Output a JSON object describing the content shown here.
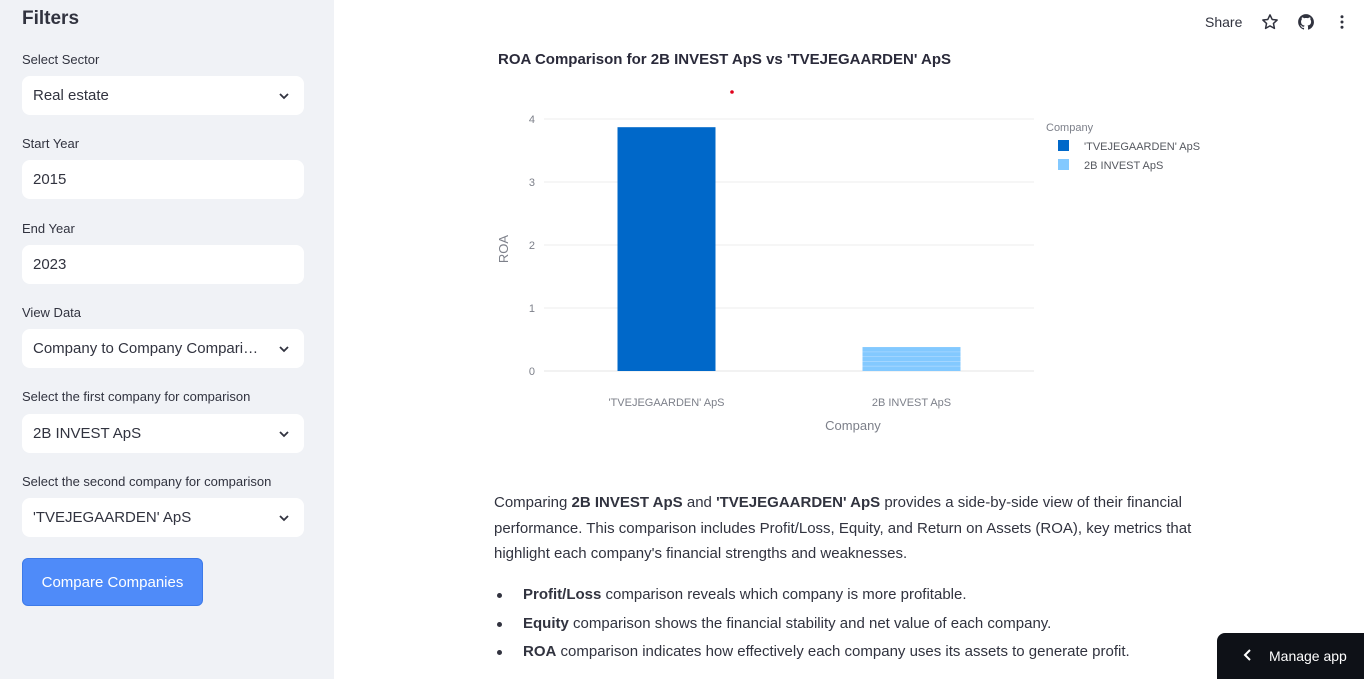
{
  "sidebar": {
    "title": "Filters",
    "sector_label": "Select Sector",
    "sector_value": "Real estate",
    "start_year_label": "Start Year",
    "start_year_value": "2015",
    "end_year_label": "End Year",
    "end_year_value": "2023",
    "view_label": "View Data",
    "view_value": "Company to Company Comparison",
    "first_company_label": "Select the first company for comparison",
    "first_company_value": "2B INVEST ApS",
    "second_company_label": "Select the second company for comparison",
    "second_company_value": "'TVEJEGAARDEN' ApS",
    "compare_button": "Compare Companies"
  },
  "topbar": {
    "share_label": "Share",
    "icons": [
      "star-icon",
      "github-icon",
      "more-vertical-icon"
    ]
  },
  "chart_data": {
    "type": "bar",
    "title": "ROA Comparison for 2B INVEST ApS vs 'TVEJEGAARDEN' ApS",
    "categories": [
      "'TVEJEGAARDEN' ApS",
      "2B INVEST ApS"
    ],
    "series": [
      {
        "name": "'TVEJEGAARDEN' ApS",
        "values": [
          3.87,
          null
        ],
        "color": "#0068c9"
      },
      {
        "name": "2B INVEST ApS",
        "values": [
          null,
          0.38
        ],
        "color": "#83c9ff"
      }
    ],
    "xlabel": "Company",
    "ylabel": "ROA",
    "legend_title": "Company",
    "ylim": [
      0,
      4.2
    ],
    "yticks": [
      0,
      1,
      2,
      3,
      4
    ],
    "grid": true,
    "legend_position": "top-right"
  },
  "content": {
    "intro_1": "Comparing ",
    "company_a": "2B INVEST ApS",
    "intro_2": " and ",
    "company_b": "'TVEJEGAARDEN' ApS",
    "intro_3": " provides a side-by-side view of their financial performance. This comparison includes Profit/Loss, Equity, and Return on Assets (ROA), key metrics that highlight each company's financial strengths and weaknesses.",
    "bullets": [
      {
        "term": "Profit/Loss",
        "text": " comparison reveals which company is more profitable."
      },
      {
        "term": "Equity",
        "text": " comparison shows the financial stability and net value of each company."
      },
      {
        "term": "ROA",
        "text": " comparison indicates how effectively each company uses its assets to generate profit."
      }
    ]
  },
  "manage_app": {
    "label": "Manage app"
  }
}
